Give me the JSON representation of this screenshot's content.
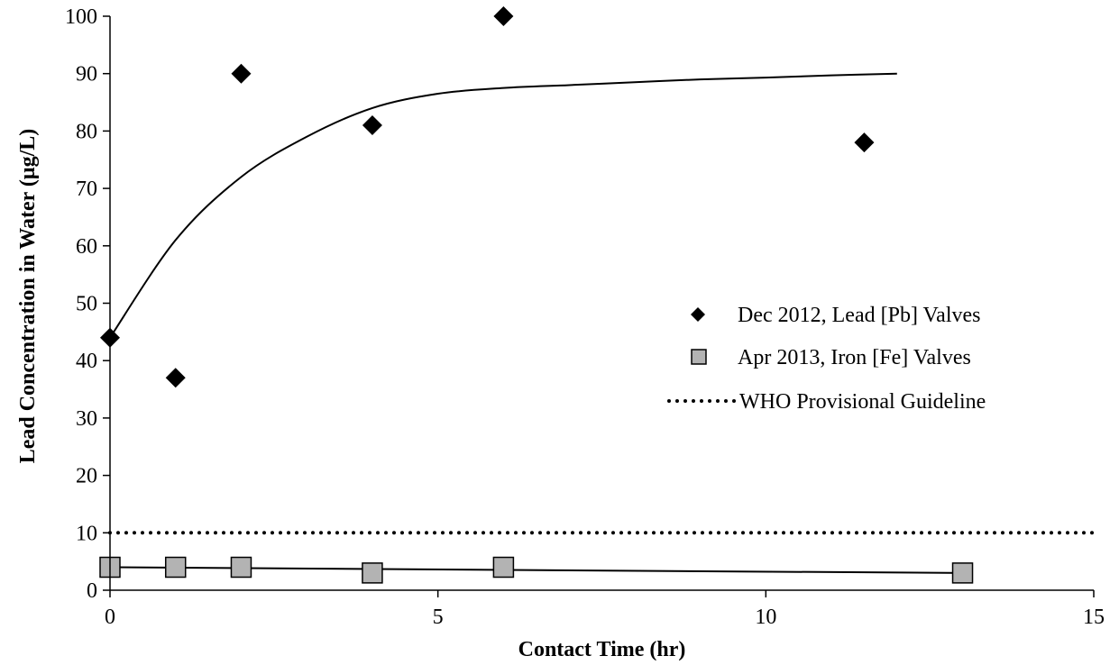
{
  "chart_data": {
    "type": "scatter",
    "title": "",
    "xlabel": "Contact Time (hr)",
    "ylabel": "Lead Concentration  in Water (µg/L)",
    "xlim": [
      0,
      15
    ],
    "ylim": [
      0,
      100
    ],
    "xticks": [
      "0",
      "5",
      "10",
      "15"
    ],
    "yticks": [
      "0",
      "10",
      "20",
      "30",
      "40",
      "50",
      "60",
      "70",
      "80",
      "90",
      "100"
    ],
    "grid": false,
    "legend_position": "right",
    "series": [
      {
        "name": "Dec 2012, Lead [Pb] Valves",
        "marker": "diamond",
        "color": "#000000",
        "x": [
          0,
          1,
          2,
          4,
          6,
          11.5
        ],
        "y": [
          44,
          37,
          90,
          81,
          100,
          78
        ],
        "trendline": {
          "x": [
            0,
            1,
            2,
            3,
            4,
            5,
            6,
            7,
            8,
            9,
            10,
            11,
            12
          ],
          "y": [
            44,
            61,
            72,
            79,
            84,
            86.5,
            87.5,
            88,
            88.5,
            89,
            89.3,
            89.7,
            90
          ]
        }
      },
      {
        "name": "Apr 2013, Iron [Fe] Valves",
        "marker": "square",
        "color": "#b3b3b3",
        "x": [
          0,
          1,
          2,
          4,
          6,
          13
        ],
        "y": [
          4,
          4,
          4,
          3,
          4,
          3
        ],
        "trendline": {
          "x": [
            0,
            13
          ],
          "y": [
            4,
            3
          ]
        }
      },
      {
        "name": "WHO Provisional Guideline",
        "style": "dotted-line",
        "color": "#000000",
        "x": [
          0,
          15
        ],
        "y": [
          10,
          10
        ]
      }
    ]
  }
}
